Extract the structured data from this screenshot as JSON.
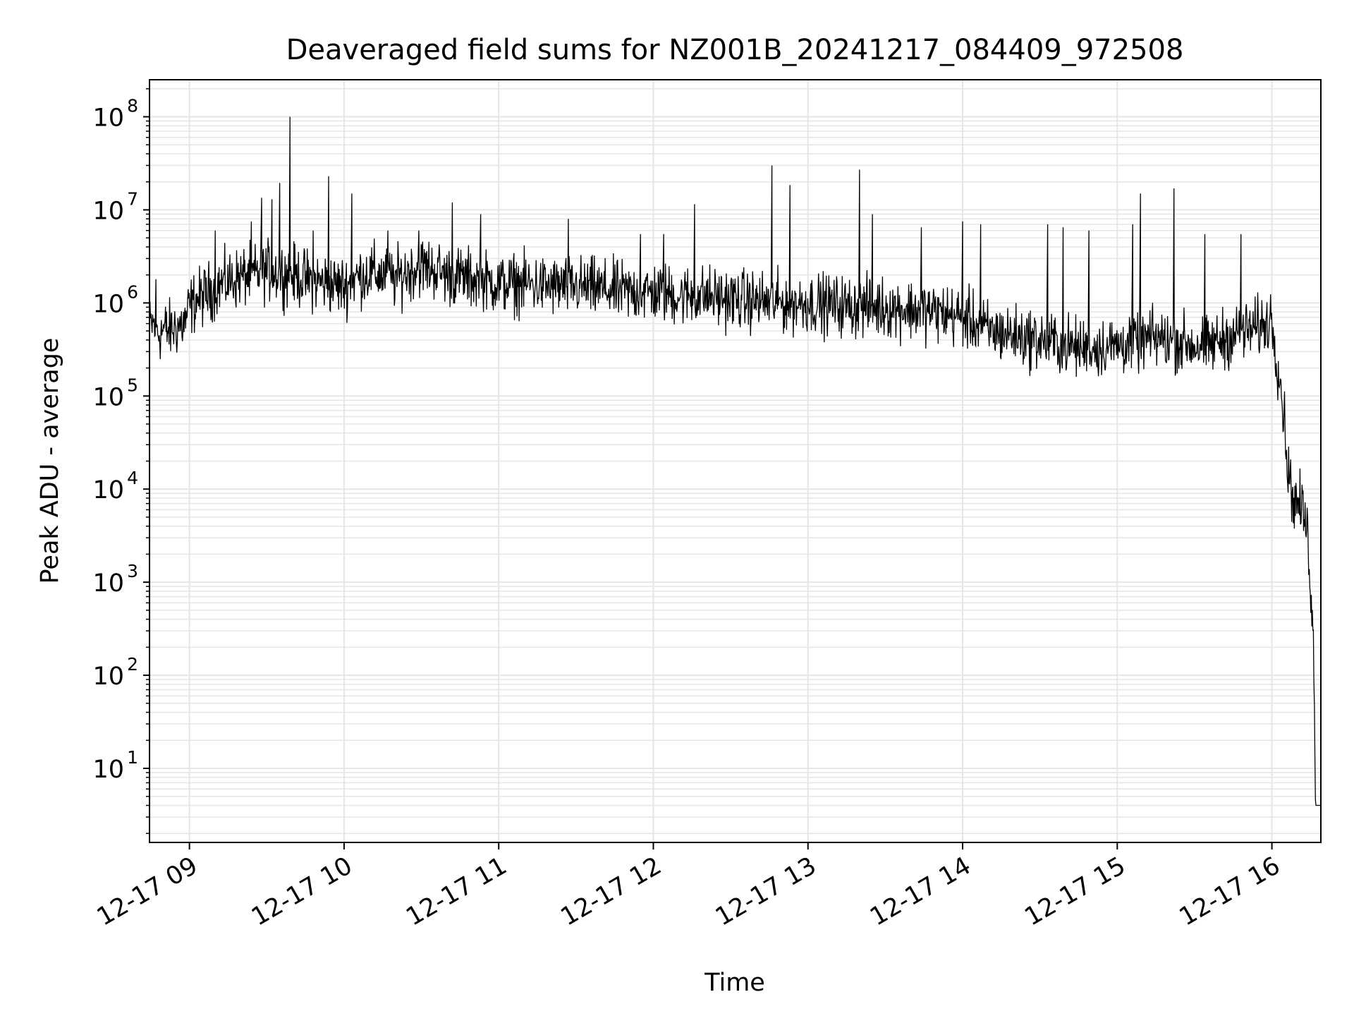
{
  "chart_data": {
    "type": "line",
    "title": "Deaveraged field sums for NZ001B_20241217_084409_972508",
    "xlabel": "Time",
    "ylabel": "Peak ADU - average",
    "yscale": "log",
    "ylim": [
      1.6,
      250000000.0
    ],
    "xlim": [
      "2024-12-17 08:44:30",
      "2024-12-17 16:19:00"
    ],
    "grid": true,
    "x_ticks": [
      "12-17 09",
      "12-17 10",
      "12-17 11",
      "12-17 12",
      "12-17 13",
      "12-17 14",
      "12-17 15",
      "12-17 16"
    ],
    "y_ticks": [
      {
        "base": "10",
        "exp": "1",
        "value": 10
      },
      {
        "base": "10",
        "exp": "2",
        "value": 100
      },
      {
        "base": "10",
        "exp": "3",
        "value": 1000
      },
      {
        "base": "10",
        "exp": "4",
        "value": 10000
      },
      {
        "base": "10",
        "exp": "5",
        "value": 100000
      },
      {
        "base": "10",
        "exp": "6",
        "value": 1000000
      },
      {
        "base": "10",
        "exp": "7",
        "value": 10000000
      },
      {
        "base": "10",
        "exp": "8",
        "value": 100000000
      }
    ],
    "line_color": "#000000",
    "series": [
      {
        "x": [
          "2024-12-17 08:44:30",
          "2024-12-17 08:46:00",
          "2024-12-17 08:48:00",
          "2024-12-17 08:50:00",
          "2024-12-17 08:52:00",
          "2024-12-17 08:55:00",
          "2024-12-17 08:58:00",
          "2024-12-17 09:00:00",
          "2024-12-17 09:03:00",
          "2024-12-17 09:06:00",
          "2024-12-17 09:10:00",
          "2024-12-17 09:15:00",
          "2024-12-17 09:20:00",
          "2024-12-17 09:25:00",
          "2024-12-17 09:30:00",
          "2024-12-17 09:35:00",
          "2024-12-17 09:40:00",
          "2024-12-17 09:45:00",
          "2024-12-17 09:50:00",
          "2024-12-17 09:55:00",
          "2024-12-17 10:00:00",
          "2024-12-17 10:05:00",
          "2024-12-17 10:10:00",
          "2024-12-17 10:15:00",
          "2024-12-17 10:20:00",
          "2024-12-17 10:25:00",
          "2024-12-17 10:30:00",
          "2024-12-17 10:35:00",
          "2024-12-17 10:40:00",
          "2024-12-17 10:45:00",
          "2024-12-17 10:50:00",
          "2024-12-17 10:55:00",
          "2024-12-17 11:00:00",
          "2024-12-17 11:10:00",
          "2024-12-17 11:20:00",
          "2024-12-17 11:30:00",
          "2024-12-17 11:40:00",
          "2024-12-17 11:50:00",
          "2024-12-17 12:00:00",
          "2024-12-17 12:10:00",
          "2024-12-17 12:20:00",
          "2024-12-17 12:30:00",
          "2024-12-17 12:40:00",
          "2024-12-17 12:50:00",
          "2024-12-17 13:00:00",
          "2024-12-17 13:10:00",
          "2024-12-17 13:20:00",
          "2024-12-17 13:30:00",
          "2024-12-17 13:40:00",
          "2024-12-17 13:50:00",
          "2024-12-17 14:00:00",
          "2024-12-17 14:05:00",
          "2024-12-17 14:10:00",
          "2024-12-17 14:15:00",
          "2024-12-17 14:20:00",
          "2024-12-17 14:25:00",
          "2024-12-17 14:30:00",
          "2024-12-17 14:35:00",
          "2024-12-17 14:40:00",
          "2024-12-17 14:45:00",
          "2024-12-17 14:50:00",
          "2024-12-17 14:55:00",
          "2024-12-17 15:00:00",
          "2024-12-17 15:05:00",
          "2024-12-17 15:10:00",
          "2024-12-17 15:15:00",
          "2024-12-17 15:20:00",
          "2024-12-17 15:25:00",
          "2024-12-17 15:30:00",
          "2024-12-17 15:35:00",
          "2024-12-17 15:40:00",
          "2024-12-17 15:45:00",
          "2024-12-17 15:50:00",
          "2024-12-17 15:55:00",
          "2024-12-17 15:58:00",
          "2024-12-17 16:00:00",
          "2024-12-17 16:02:00",
          "2024-12-17 16:04:00",
          "2024-12-17 16:06:00",
          "2024-12-17 16:08:00",
          "2024-12-17 16:10:00",
          "2024-12-17 16:12:00",
          "2024-12-17 16:14:00",
          "2024-12-17 16:15:00",
          "2024-12-17 16:16:00",
          "2024-12-17 16:17:00",
          "2024-12-17 16:18:00",
          "2024-12-17 16:19:00"
        ],
        "y": [
          550000,
          600000,
          480000,
          520000,
          500000,
          560000,
          600000,
          900000,
          1100000,
          1200000,
          1500000,
          1700000,
          1900000,
          2000000,
          2200000,
          2100000,
          2000000,
          1800000,
          1700000,
          1600000,
          1500000,
          1900000,
          2100000,
          2000000,
          1800000,
          2200000,
          2500000,
          2300000,
          2000000,
          1900000,
          1800000,
          1700000,
          1600000,
          1600000,
          1500000,
          1500000,
          1400000,
          1300000,
          1300000,
          1200000,
          1200000,
          1100000,
          1050000,
          1000000,
          1000000,
          950000,
          900000,
          900000,
          850000,
          800000,
          700000,
          600000,
          500000,
          480000,
          450000,
          420000,
          400000,
          380000,
          350000,
          330000,
          320000,
          340000,
          350000,
          380000,
          400000,
          420000,
          400000,
          380000,
          350000,
          340000,
          400000,
          450000,
          500000,
          550000,
          600000,
          700000,
          250000,
          100000,
          20000,
          8000,
          7000,
          6000,
          3000,
          1000,
          300,
          4,
          4,
          4
        ]
      }
    ],
    "spikes": [
      {
        "x": "2024-12-17 08:47:00",
        "y": 1800000
      },
      {
        "x": "2024-12-17 09:10:00",
        "y": 6000000
      },
      {
        "x": "2024-12-17 09:24:00",
        "y": 7500000
      },
      {
        "x": "2024-12-17 09:28:00",
        "y": 13500000
      },
      {
        "x": "2024-12-17 09:32:00",
        "y": 13000000
      },
      {
        "x": "2024-12-17 09:35:00",
        "y": 19500000
      },
      {
        "x": "2024-12-17 09:39:00",
        "y": 100000000
      },
      {
        "x": "2024-12-17 09:48:00",
        "y": 6000000
      },
      {
        "x": "2024-12-17 09:54:00",
        "y": 23000000
      },
      {
        "x": "2024-12-17 10:03:00",
        "y": 15000000
      },
      {
        "x": "2024-12-17 10:17:00",
        "y": 6000000
      },
      {
        "x": "2024-12-17 10:29:00",
        "y": 6000000
      },
      {
        "x": "2024-12-17 10:42:00",
        "y": 12000000
      },
      {
        "x": "2024-12-17 10:53:00",
        "y": 9000000
      },
      {
        "x": "2024-12-17 11:27:00",
        "y": 8000000
      },
      {
        "x": "2024-12-17 11:55:00",
        "y": 5500000
      },
      {
        "x": "2024-12-17 12:04:00",
        "y": 5500000
      },
      {
        "x": "2024-12-17 12:16:00",
        "y": 11500000
      },
      {
        "x": "2024-12-17 12:46:00",
        "y": 30000000
      },
      {
        "x": "2024-12-17 12:53:00",
        "y": 18500000
      },
      {
        "x": "2024-12-17 13:20:00",
        "y": 27000000
      },
      {
        "x": "2024-12-17 13:25:00",
        "y": 9000000
      },
      {
        "x": "2024-12-17 13:44:00",
        "y": 6500000
      },
      {
        "x": "2024-12-17 14:00:00",
        "y": 7500000
      },
      {
        "x": "2024-12-17 14:07:00",
        "y": 7000000
      },
      {
        "x": "2024-12-17 14:33:00",
        "y": 7000000
      },
      {
        "x": "2024-12-17 14:39:00",
        "y": 6500000
      },
      {
        "x": "2024-12-17 14:49:00",
        "y": 6000000
      },
      {
        "x": "2024-12-17 15:06:00",
        "y": 7000000
      },
      {
        "x": "2024-12-17 15:09:00",
        "y": 15000000
      },
      {
        "x": "2024-12-17 15:22:00",
        "y": 17000000
      },
      {
        "x": "2024-12-17 15:34:00",
        "y": 5500000
      },
      {
        "x": "2024-12-17 15:48:00",
        "y": 5500000
      }
    ]
  }
}
